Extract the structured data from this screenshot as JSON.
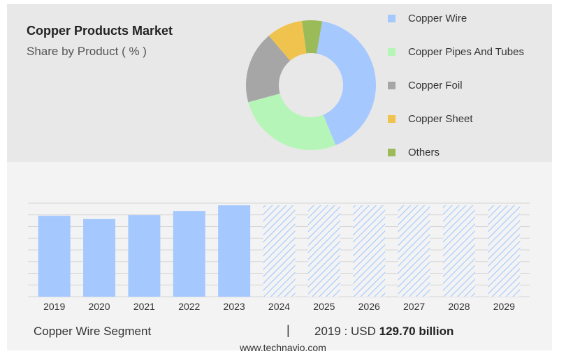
{
  "header": {
    "title": "Copper Products Market",
    "subtitle": "Share by Product ( % )"
  },
  "chart_data": [
    {
      "type": "pie",
      "title": "Copper Products Market",
      "subtitle": "Share by Product ( % )",
      "donut": true,
      "legend_position": "right",
      "slices": [
        {
          "label": "Copper Wire",
          "value": 41,
          "color": "#a5c8ff"
        },
        {
          "label": "Copper Pipes And Tubes",
          "value": 27,
          "color": "#b6f5b8"
        },
        {
          "label": "Copper Foil",
          "value": 18,
          "color": "#a6a6a6"
        },
        {
          "label": "Copper Sheet",
          "value": 9,
          "color": "#f0c24e"
        },
        {
          "label": "Others",
          "value": 5,
          "color": "#9bbb59"
        }
      ]
    },
    {
      "type": "bar",
      "categories": [
        "2019",
        "2020",
        "2021",
        "2022",
        "2023",
        "2024",
        "2025",
        "2026",
        "2027",
        "2028",
        "2029"
      ],
      "values": [
        129.7,
        124.5,
        130.8,
        137.5,
        146.5,
        null,
        null,
        null,
        null,
        null,
        null
      ],
      "forecast_from_index": 5,
      "forecast_value": 146.5,
      "ylim": [
        0,
        150
      ],
      "grid": true,
      "y_tick_labels_shown": false,
      "bar_color": "#a5c8ff",
      "forecast_pattern_color": "#a5c8ff"
    }
  ],
  "footer": {
    "segment": "Copper Wire Segment",
    "separator": "|",
    "year_currency": "2019 : USD ",
    "value": "129.70 billion",
    "site": "www.technavio.com"
  }
}
